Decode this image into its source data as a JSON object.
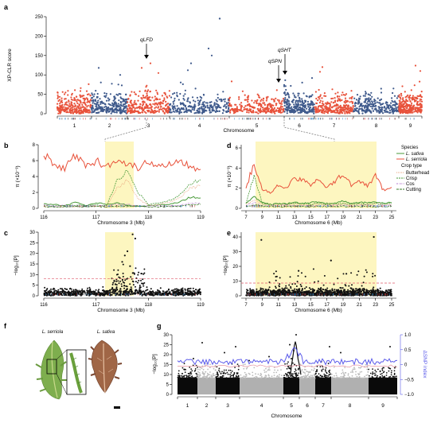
{
  "labels": {
    "a": "a",
    "b": "b",
    "c": "c",
    "d": "d",
    "e": "e",
    "f": "f",
    "g": "g"
  },
  "colors": {
    "red": "#e8523b",
    "blue": "#3f5a8c",
    "highlight": "#fdf6c0",
    "sativa": "#4a9a3a",
    "serriola": "#e8523b",
    "orange": "#f07f2a",
    "purple": "#b77ed0",
    "threshold": "#e05a6a",
    "sig": "#c04040",
    "grey": "#b0b0b0",
    "deltaSNP": "#5b5bea"
  },
  "panel_a": {
    "ylabel": "XP-CLR score",
    "xlabel": "Chromosome",
    "yticks": [
      "0",
      "50",
      "100",
      "150",
      "200",
      "250"
    ],
    "chroms": [
      "1",
      "2",
      "3",
      "4",
      "5",
      "6",
      "7",
      "8",
      "9"
    ],
    "annotations": [
      "qLFD",
      "qSPN",
      "qSHT"
    ]
  },
  "panel_b": {
    "ylabel": "π (×10⁻³)",
    "xlabel": "Chromosome 3 (Mb)",
    "yticks": [
      "0",
      "2",
      "4",
      "6",
      "8"
    ],
    "xticks": [
      "116",
      "117",
      "118",
      "119"
    ]
  },
  "panel_c": {
    "ylabel": "−log₁₀[P]",
    "xlabel": "Chromosome 3 (Mb)",
    "yticks": [
      "0",
      "5",
      "10",
      "15",
      "20",
      "25",
      "30"
    ],
    "xticks": [
      "116",
      "117",
      "118",
      "119"
    ]
  },
  "panel_d": {
    "ylabel": "π (×10⁻³)",
    "xlabel": "Chromosome 6 (Mb)",
    "yticks": [
      "0",
      "2",
      "4",
      "6"
    ],
    "xticks": [
      "7",
      "9",
      "11",
      "13",
      "15",
      "17",
      "19",
      "21",
      "23",
      "25"
    ]
  },
  "panel_e": {
    "ylabel": "−log₁₀[P]",
    "xlabel": "Chromosome 6 (Mb)",
    "yticks": [
      "0",
      "10",
      "20",
      "30",
      "40"
    ],
    "xticks": [
      "7",
      "9",
      "11",
      "13",
      "15",
      "17",
      "19",
      "21",
      "23",
      "25"
    ]
  },
  "legend": {
    "species_title": "Species",
    "species": [
      "L. sativa",
      "L. serriola"
    ],
    "crop_title": "Crop type",
    "crop": [
      "Butterhead",
      "Crisp",
      "Cos",
      "Cutting"
    ]
  },
  "panel_f": {
    "left_title": "L. serriola",
    "right_title": "L. sativa"
  },
  "panel_g": {
    "ylabel": "−log₁₀[P]",
    "y2label": "ΔSNP index",
    "xlabel": "Chromosome",
    "yticks": [
      "0",
      "5",
      "10",
      "15",
      "20",
      "25",
      "30"
    ],
    "y2ticks": [
      "1.0",
      "0.5",
      "0",
      "−0.5",
      "−1.0"
    ],
    "chroms": [
      "1",
      "2",
      "3",
      "4",
      "5",
      "6",
      "7",
      "8",
      "9"
    ]
  },
  "chart_data": [
    {
      "panel": "a",
      "type": "scatter",
      "title": "",
      "xlabel": "Chromosome",
      "ylabel": "XP-CLR score",
      "ylim": [
        0,
        250
      ],
      "categories": [
        "1",
        "2",
        "3",
        "4",
        "5",
        "6",
        "7",
        "8",
        "9"
      ],
      "peaks": [
        {
          "chrom": "3",
          "label": "qLFD",
          "value": 75
        },
        {
          "chrom": "6",
          "label": "qSPN",
          "value": 70
        },
        {
          "chrom": "6",
          "label": "qSHT",
          "value": 90
        }
      ],
      "max_point": {
        "chrom": "4",
        "value": 245
      }
    },
    {
      "panel": "b",
      "type": "line",
      "xlabel": "Chromosome 3 (Mb)",
      "ylabel": "π (×10⁻³)",
      "xlim": [
        116,
        119
      ],
      "ylim": [
        0,
        8
      ],
      "highlight": [
        117.3,
        118.0
      ],
      "x": [
        116.0,
        116.2,
        116.4,
        116.6,
        116.8,
        117.0,
        117.2,
        117.4,
        117.6,
        117.8,
        118.0,
        118.2,
        118.4,
        118.6,
        118.8,
        119.0
      ],
      "series": [
        {
          "name": "L. serriola",
          "values": [
            6.8,
            5.3,
            5.0,
            6.7,
            5.4,
            5.9,
            5.3,
            6.3,
            5.6,
            5.1,
            5.8,
            5.5,
            5.6,
            6.0,
            5.4,
            4.9
          ]
        },
        {
          "name": "L. sativa",
          "values": [
            0.6,
            0.5,
            0.3,
            0.8,
            0.3,
            0.7,
            0.5,
            0.7,
            0.4,
            0.2,
            0.3,
            0.4,
            0.5,
            0.8,
            1.4,
            1.3
          ]
        },
        {
          "name": "Butterhead",
          "values": [
            0.2,
            0.2,
            0.2,
            0.2,
            0.2,
            0.3,
            0.2,
            2.5,
            3.5,
            1.2,
            0.4,
            0.5,
            0.8,
            1.3,
            2.5,
            2.8
          ]
        },
        {
          "name": "Crisp",
          "values": [
            0.3,
            0.3,
            0.3,
            0.4,
            0.3,
            0.4,
            0.3,
            3.5,
            4.8,
            2.0,
            0.5,
            0.6,
            1.0,
            1.6,
            3.0,
            3.6
          ]
        },
        {
          "name": "Cos",
          "values": [
            0.4,
            0.3,
            0.4,
            0.3,
            0.3,
            0.3,
            0.3,
            0.5,
            0.5,
            0.3,
            0.3,
            0.3,
            0.3,
            0.4,
            0.6,
            0.7
          ]
        },
        {
          "name": "Cutting",
          "values": [
            0.2,
            0.2,
            0.2,
            0.2,
            0.2,
            0.2,
            0.2,
            0.3,
            0.3,
            0.3,
            0.2,
            0.2,
            0.2,
            0.3,
            0.4,
            0.5
          ]
        }
      ]
    },
    {
      "panel": "c",
      "type": "scatter",
      "xlabel": "Chromosome 3 (Mb)",
      "ylabel": "−log₁₀[P]",
      "xlim": [
        116,
        119
      ],
      "ylim": [
        0,
        30
      ],
      "highlight": [
        117.3,
        118.0
      ],
      "threshold": 8,
      "max_point": {
        "x": 117.7,
        "y": 29
      }
    },
    {
      "panel": "d",
      "type": "line",
      "xlabel": "Chromosome 6 (Mb)",
      "ylabel": "π (×10⁻³)",
      "xlim": [
        7,
        25
      ],
      "ylim": [
        0,
        7
      ],
      "highlight": [
        9,
        23
      ],
      "x": [
        7,
        8,
        9,
        10,
        11,
        12,
        13,
        14,
        15,
        16,
        17,
        18,
        19,
        20,
        21,
        22,
        23,
        24,
        25
      ],
      "series": [
        {
          "name": "L. serriola",
          "values": [
            2.1,
            4.8,
            2.0,
            1.6,
            2.4,
            2.2,
            3.1,
            2.9,
            2.5,
            3.2,
            2.1,
            2.8,
            3.6,
            2.4,
            3.0,
            2.3,
            3.4,
            1.9,
            2.2
          ]
        },
        {
          "name": "L. sativa",
          "values": [
            0.6,
            1.2,
            0.6,
            0.4,
            0.5,
            0.5,
            0.6,
            0.5,
            0.6,
            0.7,
            0.5,
            0.5,
            0.8,
            0.5,
            0.6,
            0.6,
            0.7,
            0.5,
            0.6
          ]
        },
        {
          "name": "Butterhead",
          "values": [
            0.4,
            0.9,
            0.5,
            0.4,
            0.4,
            0.4,
            0.5,
            0.4,
            0.4,
            0.5,
            0.4,
            0.4,
            0.5,
            0.4,
            0.4,
            0.4,
            0.5,
            0.4,
            0.4
          ]
        },
        {
          "name": "Crisp",
          "values": [
            0.5,
            3.5,
            0.5,
            0.4,
            0.5,
            0.4,
            0.5,
            0.5,
            0.4,
            0.5,
            0.4,
            0.5,
            0.5,
            0.4,
            0.5,
            0.4,
            0.5,
            0.4,
            0.5
          ]
        },
        {
          "name": "Cos",
          "values": [
            0.3,
            0.6,
            0.3,
            0.3,
            0.3,
            0.3,
            0.3,
            0.3,
            0.3,
            0.3,
            0.3,
            0.3,
            0.3,
            0.3,
            0.3,
            0.3,
            0.3,
            0.3,
            0.3
          ]
        },
        {
          "name": "Cutting",
          "values": [
            0.2,
            0.4,
            0.2,
            0.2,
            0.2,
            0.2,
            0.2,
            0.2,
            0.2,
            0.2,
            0.2,
            0.2,
            0.2,
            0.2,
            0.2,
            0.2,
            0.2,
            0.2,
            0.2
          ]
        }
      ]
    },
    {
      "panel": "e",
      "type": "scatter",
      "xlabel": "Chromosome 6 (Mb)",
      "ylabel": "−log₁₀[P]",
      "xlim": [
        7,
        25
      ],
      "ylim": [
        0,
        45
      ],
      "highlight": [
        9,
        23
      ],
      "max_point": {
        "x": 22.8,
        "y": 43
      },
      "outliers": [
        {
          "x": 8.9,
          "y": 38
        },
        {
          "x": 17.5,
          "y": 24
        },
        {
          "x": 13.5,
          "y": 17
        },
        {
          "x": 19.4,
          "y": 15
        }
      ]
    },
    {
      "panel": "g",
      "type": "scatter",
      "xlabel": "Chromosome",
      "ylabel": "−log₁₀[P]",
      "y2label": "ΔSNP index",
      "ylim": [
        0,
        30
      ],
      "y2lim": [
        -1,
        1
      ],
      "categories": [
        "1",
        "2",
        "3",
        "4",
        "5",
        "6",
        "7",
        "8",
        "9"
      ],
      "max_point": {
        "chrom": "5",
        "value": 30
      },
      "deltaSNP_baseline": 0.1,
      "deltaSNP_peak": {
        "chrom": "5",
        "value": 0.55
      }
    }
  ]
}
